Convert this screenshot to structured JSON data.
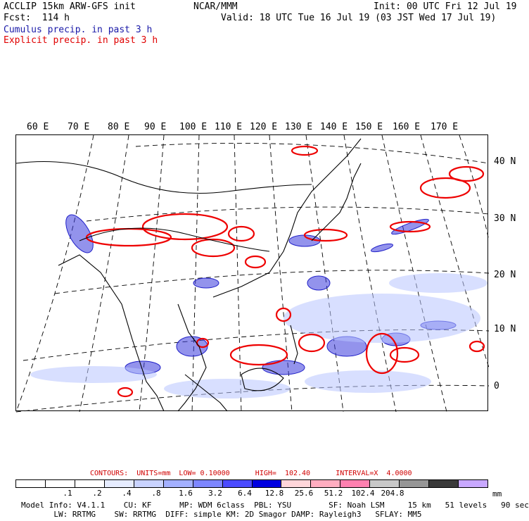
{
  "header": {
    "title_left": "ACCLIP 15km ARW-GFS init",
    "center": "NCAR/MMM",
    "init": "Init: 00 UTC Fri 12 Jul 19",
    "fcst": "Fcst:  114 h",
    "valid": "Valid: 18 UTC Tue 16 Jul 19 (03 JST Wed 17 Jul 19)",
    "field_cumulus": "Cumulus precip. in past 3 h",
    "field_explicit": "Explicit precip. in past 3 h"
  },
  "map": {
    "lon_labels": [
      "60 E",
      "70 E",
      "80 E",
      "90 E",
      "100 E",
      "110 E",
      "120 E",
      "130 E",
      "140 E",
      "150 E",
      "160 E",
      "170 E"
    ],
    "lat_labels": [
      "40 N",
      "30 N",
      "20 N",
      "10 N",
      "0"
    ],
    "colors": {
      "cumulus": "#2222dd",
      "explicit": "#ee0000",
      "coast": "#000000",
      "grid": "#000000"
    }
  },
  "contours_text": "CONTOURS:  UNITS=mm  LOW= 0.10000      HIGH=  102.40      INTERVAL=X  4.0000",
  "colorbar": {
    "colors": [
      "#ffffff",
      "#ffffff",
      "#ffffff",
      "#e6ecff",
      "#c9d3ff",
      "#a3b0ff",
      "#7d86ff",
      "#4b4bff",
      "#0000e0",
      "#ffd6da",
      "#ffadc0",
      "#ff80b0",
      "#c8c8c8",
      "#969696",
      "#3a3a3a",
      "#c8a8ff"
    ],
    "ticks": [
      ".1",
      ".2",
      ".4",
      ".8",
      "1.6",
      "3.2",
      "6.4",
      "12.8",
      "25.6",
      "51.2",
      "102.4",
      "204.8"
    ],
    "units": "mm"
  },
  "model_info": {
    "line1": "Model Info: V4.1.1    CU: KF      MP: WDM 6class  PBL: YSU        SF: Noah LSM     15 km   51 levels   90 sec",
    "line2": "       LW: RRTMG    SW: RRTMG  DIFF: simple KM: 2D Smagor DAMP: Rayleigh3   SFLAY: MM5"
  }
}
